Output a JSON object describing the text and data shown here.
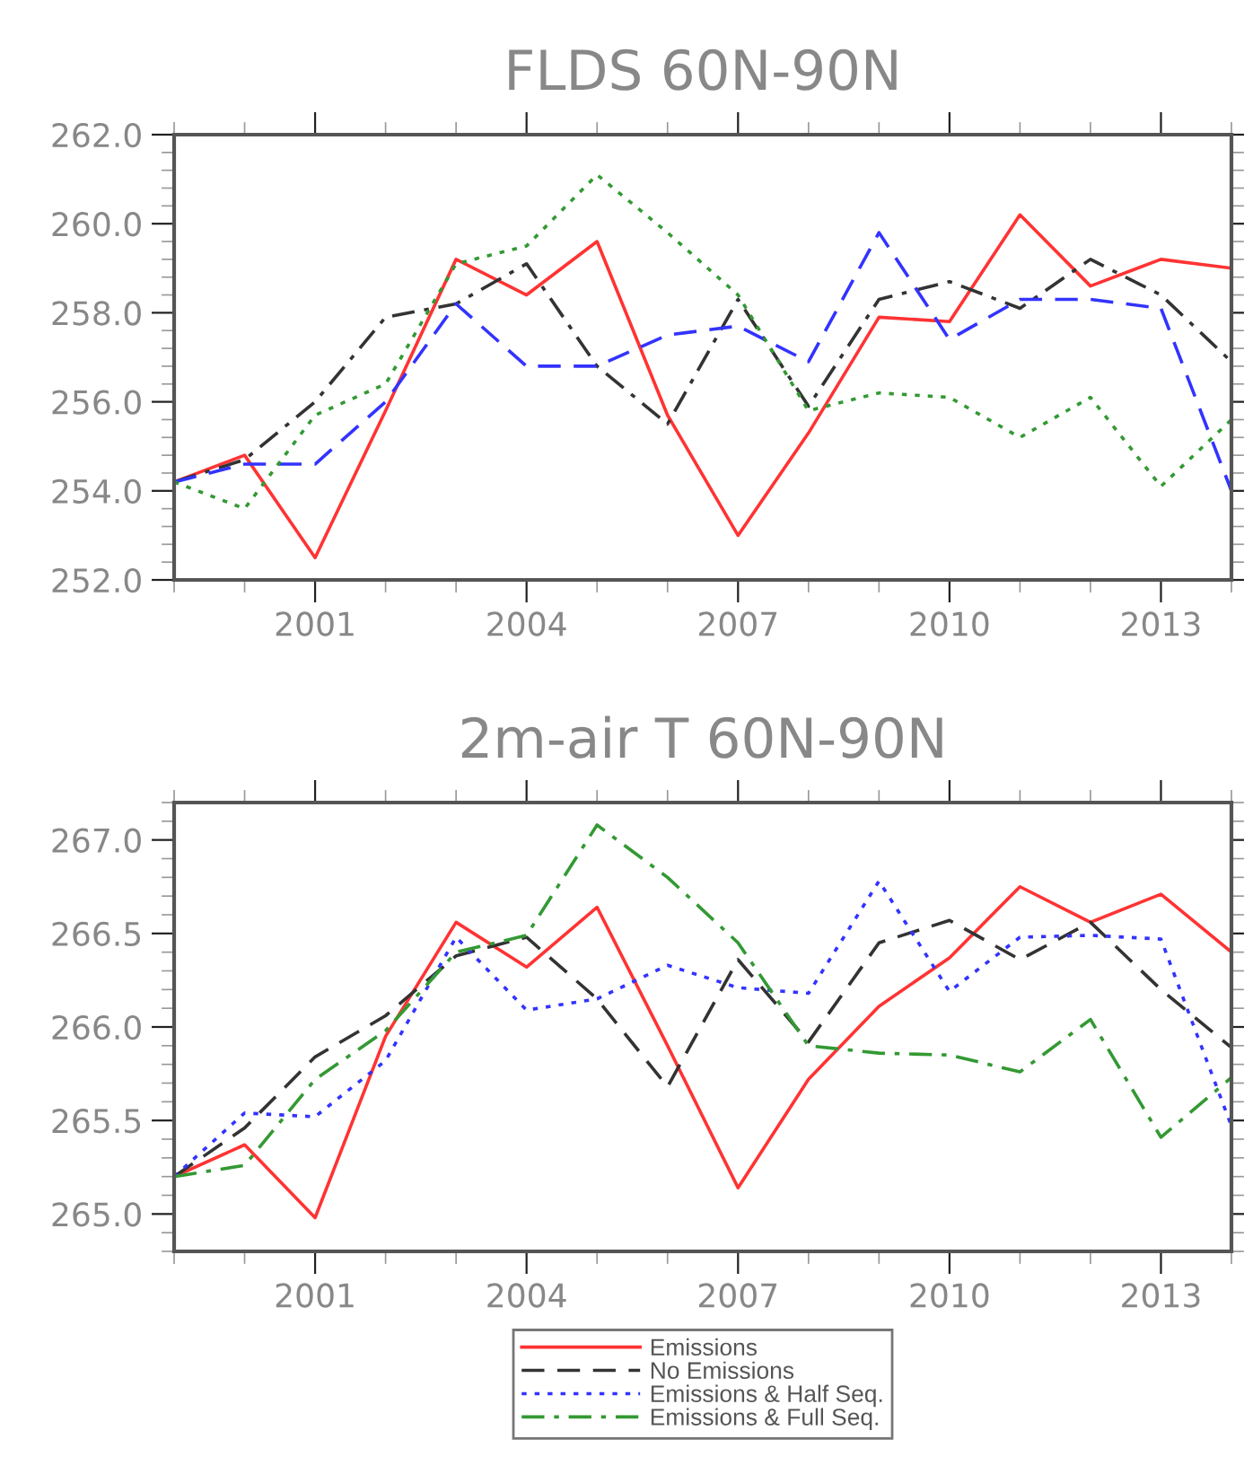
{
  "chart_data": [
    {
      "type": "line",
      "title": "FLDS 60N-90N",
      "x": [
        1999,
        2000,
        2001,
        2002,
        2003,
        2004,
        2005,
        2006,
        2007,
        2008,
        2009,
        2010,
        2011,
        2012,
        2013,
        2014
      ],
      "xlim": [
        1999,
        2014
      ],
      "xticks": [
        2001,
        2004,
        2007,
        2010,
        2013
      ],
      "ylim": [
        252,
        262
      ],
      "yticks": [
        {
          "value": 252,
          "label": "252.0"
        },
        {
          "value": 254,
          "label": "254.0"
        },
        {
          "value": 256,
          "label": "256.0"
        },
        {
          "value": 258,
          "label": "258.0"
        },
        {
          "value": 260,
          "label": "260.0"
        },
        {
          "value": 262,
          "label": "262.0"
        }
      ],
      "grid": false,
      "legend": false,
      "series": [
        {
          "color": "#ff3333",
          "line_style": "solid",
          "values": [
            254.2,
            254.8,
            252.5,
            255.8,
            259.2,
            258.4,
            259.6,
            255.7,
            253.0,
            255.3,
            257.9,
            257.8,
            260.2,
            258.6,
            259.2,
            259.0
          ]
        },
        {
          "color": "#333333",
          "line_style": "dashdot",
          "values": [
            254.2,
            254.7,
            256.0,
            257.9,
            258.2,
            259.1,
            256.8,
            255.5,
            258.3,
            255.9,
            258.3,
            258.7,
            258.1,
            259.2,
            258.4,
            256.9
          ]
        },
        {
          "color": "#3333ff",
          "line_style": "dashed",
          "values": [
            254.2,
            254.6,
            254.6,
            256.0,
            258.2,
            256.8,
            256.8,
            257.5,
            257.7,
            256.9,
            259.8,
            257.4,
            258.3,
            258.3,
            258.1,
            254.0
          ]
        },
        {
          "color": "#339933",
          "line_style": "dotted",
          "values": [
            254.2,
            253.6,
            255.7,
            256.4,
            259.1,
            259.5,
            261.1,
            259.8,
            258.4,
            255.8,
            256.2,
            256.1,
            255.2,
            256.1,
            254.1,
            255.6
          ]
        }
      ]
    },
    {
      "type": "line",
      "title": "2m-air T 60N-90N",
      "x": [
        1999,
        2000,
        2001,
        2002,
        2003,
        2004,
        2005,
        2006,
        2007,
        2008,
        2009,
        2010,
        2011,
        2012,
        2013,
        2014
      ],
      "xlim": [
        1999,
        2014
      ],
      "xticks": [
        2001,
        2004,
        2007,
        2010,
        2013
      ],
      "ylim": [
        264.8,
        267.2
      ],
      "yticks": [
        {
          "value": 265,
          "label": "265.0"
        },
        {
          "value": 265.5,
          "label": "265.5"
        },
        {
          "value": 266,
          "label": "266.0"
        },
        {
          "value": 266.5,
          "label": "266.5"
        },
        {
          "value": 267,
          "label": "267.0"
        }
      ],
      "grid": false,
      "legend": "bottom",
      "series": [
        {
          "name": "Emissions",
          "color": "#ff3333",
          "line_style": "solid",
          "values": [
            265.2,
            265.37,
            264.98,
            265.95,
            266.56,
            266.32,
            266.64,
            265.9,
            265.14,
            265.72,
            266.11,
            266.37,
            266.75,
            266.56,
            266.71,
            266.4
          ]
        },
        {
          "name": "No Emissions",
          "color": "#333333",
          "line_style": "dashed",
          "values": [
            265.2,
            265.46,
            265.84,
            266.06,
            266.38,
            266.48,
            266.15,
            265.68,
            266.36,
            265.92,
            266.45,
            266.57,
            266.36,
            266.56,
            266.2,
            265.89
          ]
        },
        {
          "name": "Emissions & Half Seq.",
          "color": "#3333ff",
          "line_style": "dotted",
          "values": [
            265.2,
            265.54,
            265.52,
            265.82,
            266.48,
            266.09,
            266.15,
            266.33,
            266.21,
            266.18,
            266.78,
            266.19,
            266.48,
            266.49,
            266.47,
            265.47
          ]
        },
        {
          "name": "Emissions & Full Seq.",
          "color": "#339933",
          "line_style": "dashdot",
          "values": [
            265.2,
            265.26,
            265.72,
            265.98,
            266.4,
            266.49,
            267.08,
            266.8,
            266.45,
            265.9,
            265.86,
            265.85,
            265.76,
            266.04,
            265.41,
            265.73
          ]
        }
      ]
    }
  ]
}
